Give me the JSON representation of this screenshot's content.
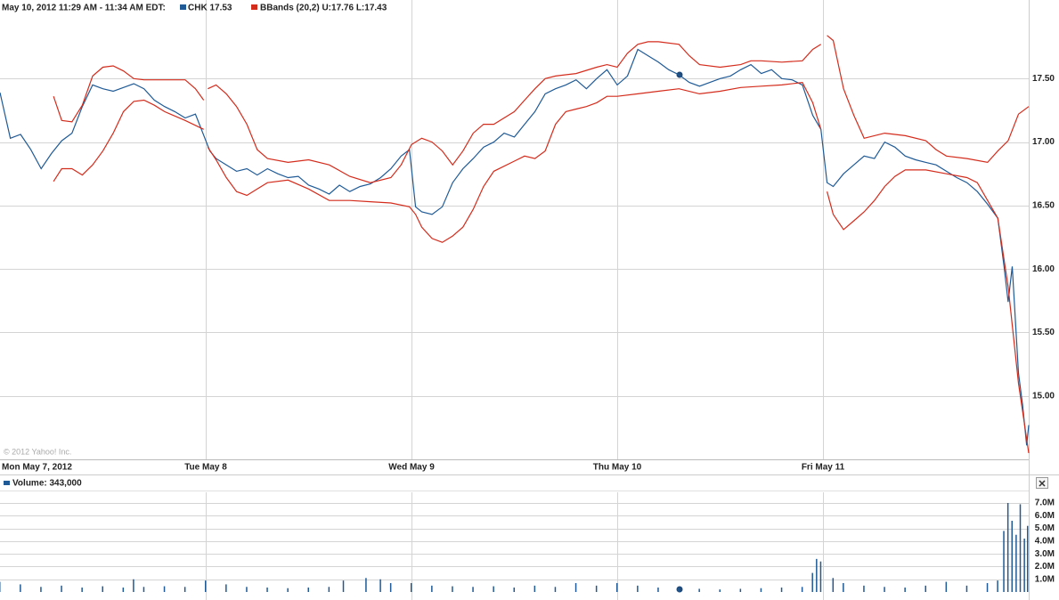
{
  "chart_data": [
    {
      "type": "line",
      "title": "May 10, 2012 11:29 AM - 11:34 AM EDT:",
      "annotation": "© 2012 Yahoo! Inc.",
      "xlim": [
        0,
        5
      ],
      "xticks": [
        {
          "value": 0,
          "label": "Mon May 7, 2012"
        },
        {
          "value": 1,
          "label": "Tue May 8"
        },
        {
          "value": 2,
          "label": "Wed May 9"
        },
        {
          "value": 3,
          "label": "Thu May 10"
        },
        {
          "value": 4,
          "label": "Fri May 11"
        }
      ],
      "ylim": [
        14.5,
        18.0
      ],
      "yticks": [
        {
          "value": 15,
          "label": "15.00"
        },
        {
          "value": 15.5,
          "label": "15.50"
        },
        {
          "value": 16,
          "label": "16.00"
        },
        {
          "value": 16.5,
          "label": "16.50"
        },
        {
          "value": 17,
          "label": "17.00"
        },
        {
          "value": 17.5,
          "label": "17.50"
        }
      ],
      "grid": true,
      "series": [
        {
          "name": "CHK 17.53",
          "color": "#1f5a96",
          "x": [
            0,
            0.05,
            0.1,
            0.15,
            0.2,
            0.25,
            0.3,
            0.35,
            0.4,
            0.45,
            0.5,
            0.55,
            0.6,
            0.65,
            0.7,
            0.75,
            0.8,
            0.85,
            0.9,
            0.95,
            1.02,
            1.05,
            1.1,
            1.15,
            1.2,
            1.25,
            1.3,
            1.35,
            1.4,
            1.45,
            1.5,
            1.55,
            1.6,
            1.65,
            1.7,
            1.75,
            1.8,
            1.85,
            1.9,
            1.95,
            1.99,
            2.02,
            2.05,
            2.1,
            2.15,
            2.2,
            2.25,
            2.3,
            2.35,
            2.4,
            2.45,
            2.5,
            2.55,
            2.6,
            2.65,
            2.7,
            2.75,
            2.8,
            2.85,
            2.9,
            2.95,
            3.0,
            3.05,
            3.1,
            3.15,
            3.2,
            3.25,
            3.3,
            3.35,
            3.4,
            3.45,
            3.5,
            3.55,
            3.6,
            3.65,
            3.7,
            3.75,
            3.8,
            3.85,
            3.9,
            3.95,
            3.99,
            4.02,
            4.05,
            4.1,
            4.15,
            4.2,
            4.25,
            4.3,
            4.35,
            4.4,
            4.45,
            4.5,
            4.55,
            4.6,
            4.65,
            4.7,
            4.75,
            4.8,
            4.85,
            4.88,
            4.9,
            4.92,
            4.95,
            4.97,
            4.99,
            5.0
          ],
          "values": [
            17.39,
            17.03,
            17.06,
            16.94,
            16.79,
            16.91,
            17.01,
            17.07,
            17.28,
            17.45,
            17.42,
            17.4,
            17.43,
            17.46,
            17.42,
            17.33,
            17.28,
            17.24,
            17.19,
            17.22,
            16.93,
            16.87,
            16.82,
            16.77,
            16.79,
            16.74,
            16.79,
            16.75,
            16.72,
            16.73,
            16.66,
            16.63,
            16.59,
            16.66,
            16.61,
            16.65,
            16.67,
            16.72,
            16.79,
            16.89,
            16.94,
            16.49,
            16.45,
            16.43,
            16.49,
            16.68,
            16.79,
            16.87,
            16.96,
            17.0,
            17.07,
            17.04,
            17.14,
            17.24,
            17.38,
            17.42,
            17.45,
            17.49,
            17.42,
            17.5,
            17.57,
            17.45,
            17.52,
            17.73,
            17.68,
            17.63,
            17.57,
            17.53,
            17.47,
            17.44,
            17.47,
            17.5,
            17.52,
            17.57,
            17.61,
            17.54,
            17.57,
            17.5,
            17.49,
            17.45,
            17.21,
            17.1,
            16.68,
            16.65,
            16.75,
            16.82,
            16.89,
            16.87,
            17.0,
            16.96,
            16.89,
            16.86,
            16.84,
            16.82,
            16.77,
            16.72,
            16.68,
            16.61,
            16.51,
            16.4,
            16.02,
            15.74,
            16.02,
            15.18,
            14.93,
            14.61,
            14.77
          ]
        },
        {
          "name": "BBands (20,2) U:17.76 L:17.43",
          "color": "#d42c1c",
          "upper": {
            "x": [
              0.26,
              0.3,
              0.35,
              0.4,
              0.45,
              0.5,
              0.55,
              0.6,
              0.65,
              0.7,
              0.8,
              0.9,
              0.95,
              0.99,
              1.0,
              1.01,
              1.05,
              1.1,
              1.15,
              1.2,
              1.25,
              1.3,
              1.4,
              1.5,
              1.6,
              1.7,
              1.8,
              1.9,
              1.95,
              2.0,
              2.05,
              2.1,
              2.15,
              2.2,
              2.25,
              2.3,
              2.35,
              2.4,
              2.5,
              2.55,
              2.6,
              2.65,
              2.7,
              2.8,
              2.9,
              2.95,
              3.0,
              3.05,
              3.1,
              3.15,
              3.2,
              3.3,
              3.35,
              3.4,
              3.5,
              3.6,
              3.65,
              3.7,
              3.8,
              3.9,
              3.95,
              3.99,
              4.0,
              4.02,
              4.05,
              4.1,
              4.15,
              4.2,
              4.3,
              4.4,
              4.5,
              4.55,
              4.6,
              4.7,
              4.8,
              4.85,
              4.9,
              4.95,
              5.0
            ],
            "values": [
              17.36,
              17.17,
              17.16,
              17.29,
              17.52,
              17.59,
              17.6,
              17.56,
              17.5,
              17.49,
              17.49,
              17.49,
              17.42,
              17.33,
              null,
              17.42,
              17.45,
              17.38,
              17.28,
              17.14,
              16.94,
              16.87,
              16.84,
              16.86,
              16.82,
              16.73,
              16.68,
              16.72,
              16.82,
              16.98,
              17.03,
              17.0,
              16.93,
              16.82,
              16.93,
              17.07,
              17.14,
              17.14,
              17.24,
              17.33,
              17.42,
              17.5,
              17.52,
              17.54,
              17.59,
              17.61,
              17.59,
              17.7,
              17.77,
              17.79,
              17.79,
              17.77,
              17.68,
              17.61,
              17.59,
              17.61,
              17.64,
              17.64,
              17.63,
              17.64,
              17.73,
              17.77,
              null,
              17.84,
              17.8,
              17.42,
              17.21,
              17.03,
              17.07,
              17.05,
              17.01,
              16.94,
              16.89,
              16.87,
              16.84,
              16.93,
              17.01,
              17.22,
              17.28
            ]
          },
          "lower": {
            "x": [
              0.26,
              0.3,
              0.35,
              0.4,
              0.45,
              0.5,
              0.55,
              0.6,
              0.65,
              0.7,
              0.75,
              0.8,
              0.9,
              0.99,
              1.0,
              1.01,
              1.05,
              1.1,
              1.15,
              1.2,
              1.25,
              1.3,
              1.4,
              1.5,
              1.6,
              1.7,
              1.8,
              1.9,
              1.99,
              2.02,
              2.05,
              2.1,
              2.15,
              2.2,
              2.25,
              2.3,
              2.35,
              2.4,
              2.5,
              2.55,
              2.6,
              2.65,
              2.7,
              2.75,
              2.8,
              2.85,
              2.9,
              2.95,
              3.0,
              3.1,
              3.2,
              3.3,
              3.4,
              3.5,
              3.6,
              3.7,
              3.8,
              3.9,
              3.95,
              3.99,
              4.0,
              4.02,
              4.05,
              4.1,
              4.15,
              4.2,
              4.25,
              4.3,
              4.35,
              4.4,
              4.5,
              4.6,
              4.7,
              4.75,
              4.8,
              4.85,
              4.9,
              4.95,
              5.0
            ],
            "values": [
              16.69,
              16.79,
              16.79,
              16.74,
              16.82,
              16.93,
              17.07,
              17.24,
              17.32,
              17.33,
              17.29,
              17.24,
              17.17,
              17.1,
              null,
              16.96,
              16.86,
              16.72,
              16.61,
              16.58,
              16.63,
              16.68,
              16.7,
              16.63,
              16.54,
              16.54,
              16.53,
              16.52,
              16.49,
              16.43,
              16.33,
              16.24,
              16.21,
              16.26,
              16.33,
              16.47,
              16.65,
              16.77,
              16.85,
              16.89,
              16.87,
              16.93,
              17.14,
              17.24,
              17.26,
              17.28,
              17.31,
              17.36,
              17.36,
              17.38,
              17.4,
              17.42,
              17.38,
              17.4,
              17.43,
              17.44,
              17.45,
              17.47,
              17.31,
              17.1,
              null,
              16.61,
              16.43,
              16.31,
              16.38,
              16.45,
              16.54,
              16.65,
              16.73,
              16.78,
              16.78,
              16.75,
              16.72,
              16.68,
              16.54,
              16.4,
              15.86,
              15.1,
              14.55
            ]
          }
        }
      ]
    },
    {
      "type": "bar",
      "xlim": [
        0,
        5
      ],
      "xticks": [
        0,
        1,
        2,
        3,
        4
      ],
      "ylim": [
        0,
        7350000
      ],
      "yticks": [
        {
          "value": 1000000,
          "label": "1.0M"
        },
        {
          "value": 2000000,
          "label": "2.0M"
        },
        {
          "value": 3000000,
          "label": "3.0M"
        },
        {
          "value": 4000000,
          "label": "4.0M"
        },
        {
          "value": 5000000,
          "label": "5.0M"
        },
        {
          "value": 6000000,
          "label": "6.0M"
        },
        {
          "value": 7000000,
          "label": "7.0M"
        }
      ],
      "grid": true,
      "series": [
        {
          "name": "Volume: 343,000",
          "color": "#1f5a96",
          "x": [
            0.0,
            0.1,
            0.2,
            0.3,
            0.4,
            0.5,
            0.6,
            0.65,
            0.7,
            0.8,
            0.9,
            1.0,
            1.1,
            1.2,
            1.3,
            1.4,
            1.5,
            1.6,
            1.67,
            1.78,
            1.85,
            1.9,
            2.0,
            2.1,
            2.2,
            2.3,
            2.4,
            2.5,
            2.6,
            2.7,
            2.8,
            2.9,
            3.0,
            3.1,
            3.2,
            3.3,
            3.4,
            3.5,
            3.6,
            3.7,
            3.8,
            3.9,
            3.95,
            3.97,
            3.99,
            4.05,
            4.1,
            4.2,
            4.3,
            4.4,
            4.5,
            4.6,
            4.7,
            4.8,
            4.85,
            4.88,
            4.9,
            4.92,
            4.94,
            4.96,
            4.98,
            5.0
          ],
          "values": [
            800000,
            600000,
            400000,
            500000,
            350000,
            450000,
            350000,
            1000000,
            400000,
            450000,
            400000,
            900000,
            600000,
            400000,
            350000,
            300000,
            350000,
            400000,
            900000,
            1100000,
            1000000,
            700000,
            700000,
            500000,
            450000,
            400000,
            450000,
            350000,
            500000,
            400000,
            700000,
            500000,
            700000,
            500000,
            350000,
            300000,
            250000,
            200000,
            250000,
            300000,
            350000,
            400000,
            1500000,
            2600000,
            2400000,
            1100000,
            700000,
            500000,
            400000,
            350000,
            500000,
            800000,
            500000,
            700000,
            900000,
            4800000,
            7000000,
            5600000,
            4500000,
            6900000,
            4200000,
            5200000
          ]
        }
      ]
    }
  ]
}
